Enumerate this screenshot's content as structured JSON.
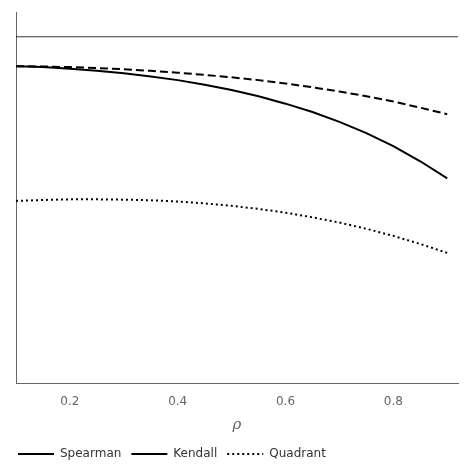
{
  "chart_data": {
    "type": "line",
    "xlabel": "ρ",
    "x": [
      0.1,
      0.15,
      0.2,
      0.25,
      0.3,
      0.35,
      0.4,
      0.45,
      0.5,
      0.55,
      0.6,
      0.65,
      0.7,
      0.75,
      0.8,
      0.85,
      0.9
    ],
    "series": [
      {
        "name": "Spearman",
        "color": "#000000",
        "line_style": "solid",
        "marker": "none",
        "values": [
          0.875,
          0.872,
          0.867,
          0.86,
          0.852,
          0.842,
          0.83,
          0.815,
          0.798,
          0.778,
          0.754,
          0.727,
          0.695,
          0.659,
          0.617,
          0.568,
          0.513
        ]
      },
      {
        "name": "Kendall",
        "color": "#000000",
        "line_style": "dashed",
        "marker": "none",
        "values": [
          0.875,
          0.874,
          0.872,
          0.869,
          0.865,
          0.86,
          0.854,
          0.847,
          0.839,
          0.83,
          0.819,
          0.807,
          0.793,
          0.778,
          0.761,
          0.741,
          0.72
        ]
      },
      {
        "name": "Quadrant",
        "color": "#000000",
        "line_style": "dotted",
        "marker": "none",
        "values": [
          0.44,
          0.443,
          0.445,
          0.445,
          0.444,
          0.442,
          0.438,
          0.432,
          0.424,
          0.414,
          0.402,
          0.387,
          0.37,
          0.35,
          0.327,
          0.301,
          0.272
        ]
      }
    ],
    "xlim": [
      0.1,
      0.92
    ],
    "ylim": [
      -0.15,
      1.05
    ],
    "xticks": [
      0.2,
      0.4,
      0.6,
      0.8
    ],
    "ref_line": 0.97,
    "ref_line_color": "#000000",
    "legend": "lower left",
    "grid": false,
    "tick_labels": "x"
  }
}
